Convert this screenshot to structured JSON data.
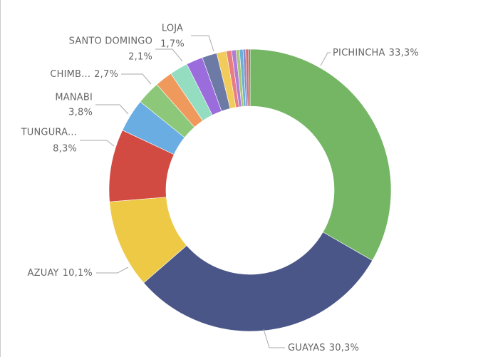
{
  "chart_data": {
    "type": "donut",
    "categories": [
      "PICHINCHA",
      "GUAYAS",
      "AZUAY",
      "TUNGURA...",
      "MANABI",
      "CHIMB...",
      null,
      "SANTO DOMINGO",
      null,
      "LOJA",
      null,
      null,
      null,
      null,
      null,
      null,
      null,
      null
    ],
    "values": [
      33.3,
      30.3,
      10.1,
      8.3,
      3.8,
      2.7,
      2.0,
      2.1,
      1.9,
      1.7,
      1.1,
      0.6,
      0.5,
      0.4,
      0.4,
      0.3,
      0.3,
      0.2
    ],
    "value_labels": [
      "33,3%",
      "30,3%",
      "10,1%",
      "8,3%",
      "3,8%",
      "2,7%",
      null,
      "2,1%",
      null,
      "1,7%",
      null,
      null,
      null,
      null,
      null,
      null,
      null,
      null
    ],
    "colors": [
      "#74b663",
      "#4a5688",
      "#eec946",
      "#d24b43",
      "#6aade3",
      "#8dc87a",
      "#ef9a5c",
      "#94ddc1",
      "#9b6ddc",
      "#6c7aa5",
      "#f2cc5a",
      "#e87e7e",
      "#b07cd6",
      "#a8c878",
      "#6baed6",
      "#8a8ac8",
      "#d86a6a",
      "#9b5050"
    ]
  }
}
